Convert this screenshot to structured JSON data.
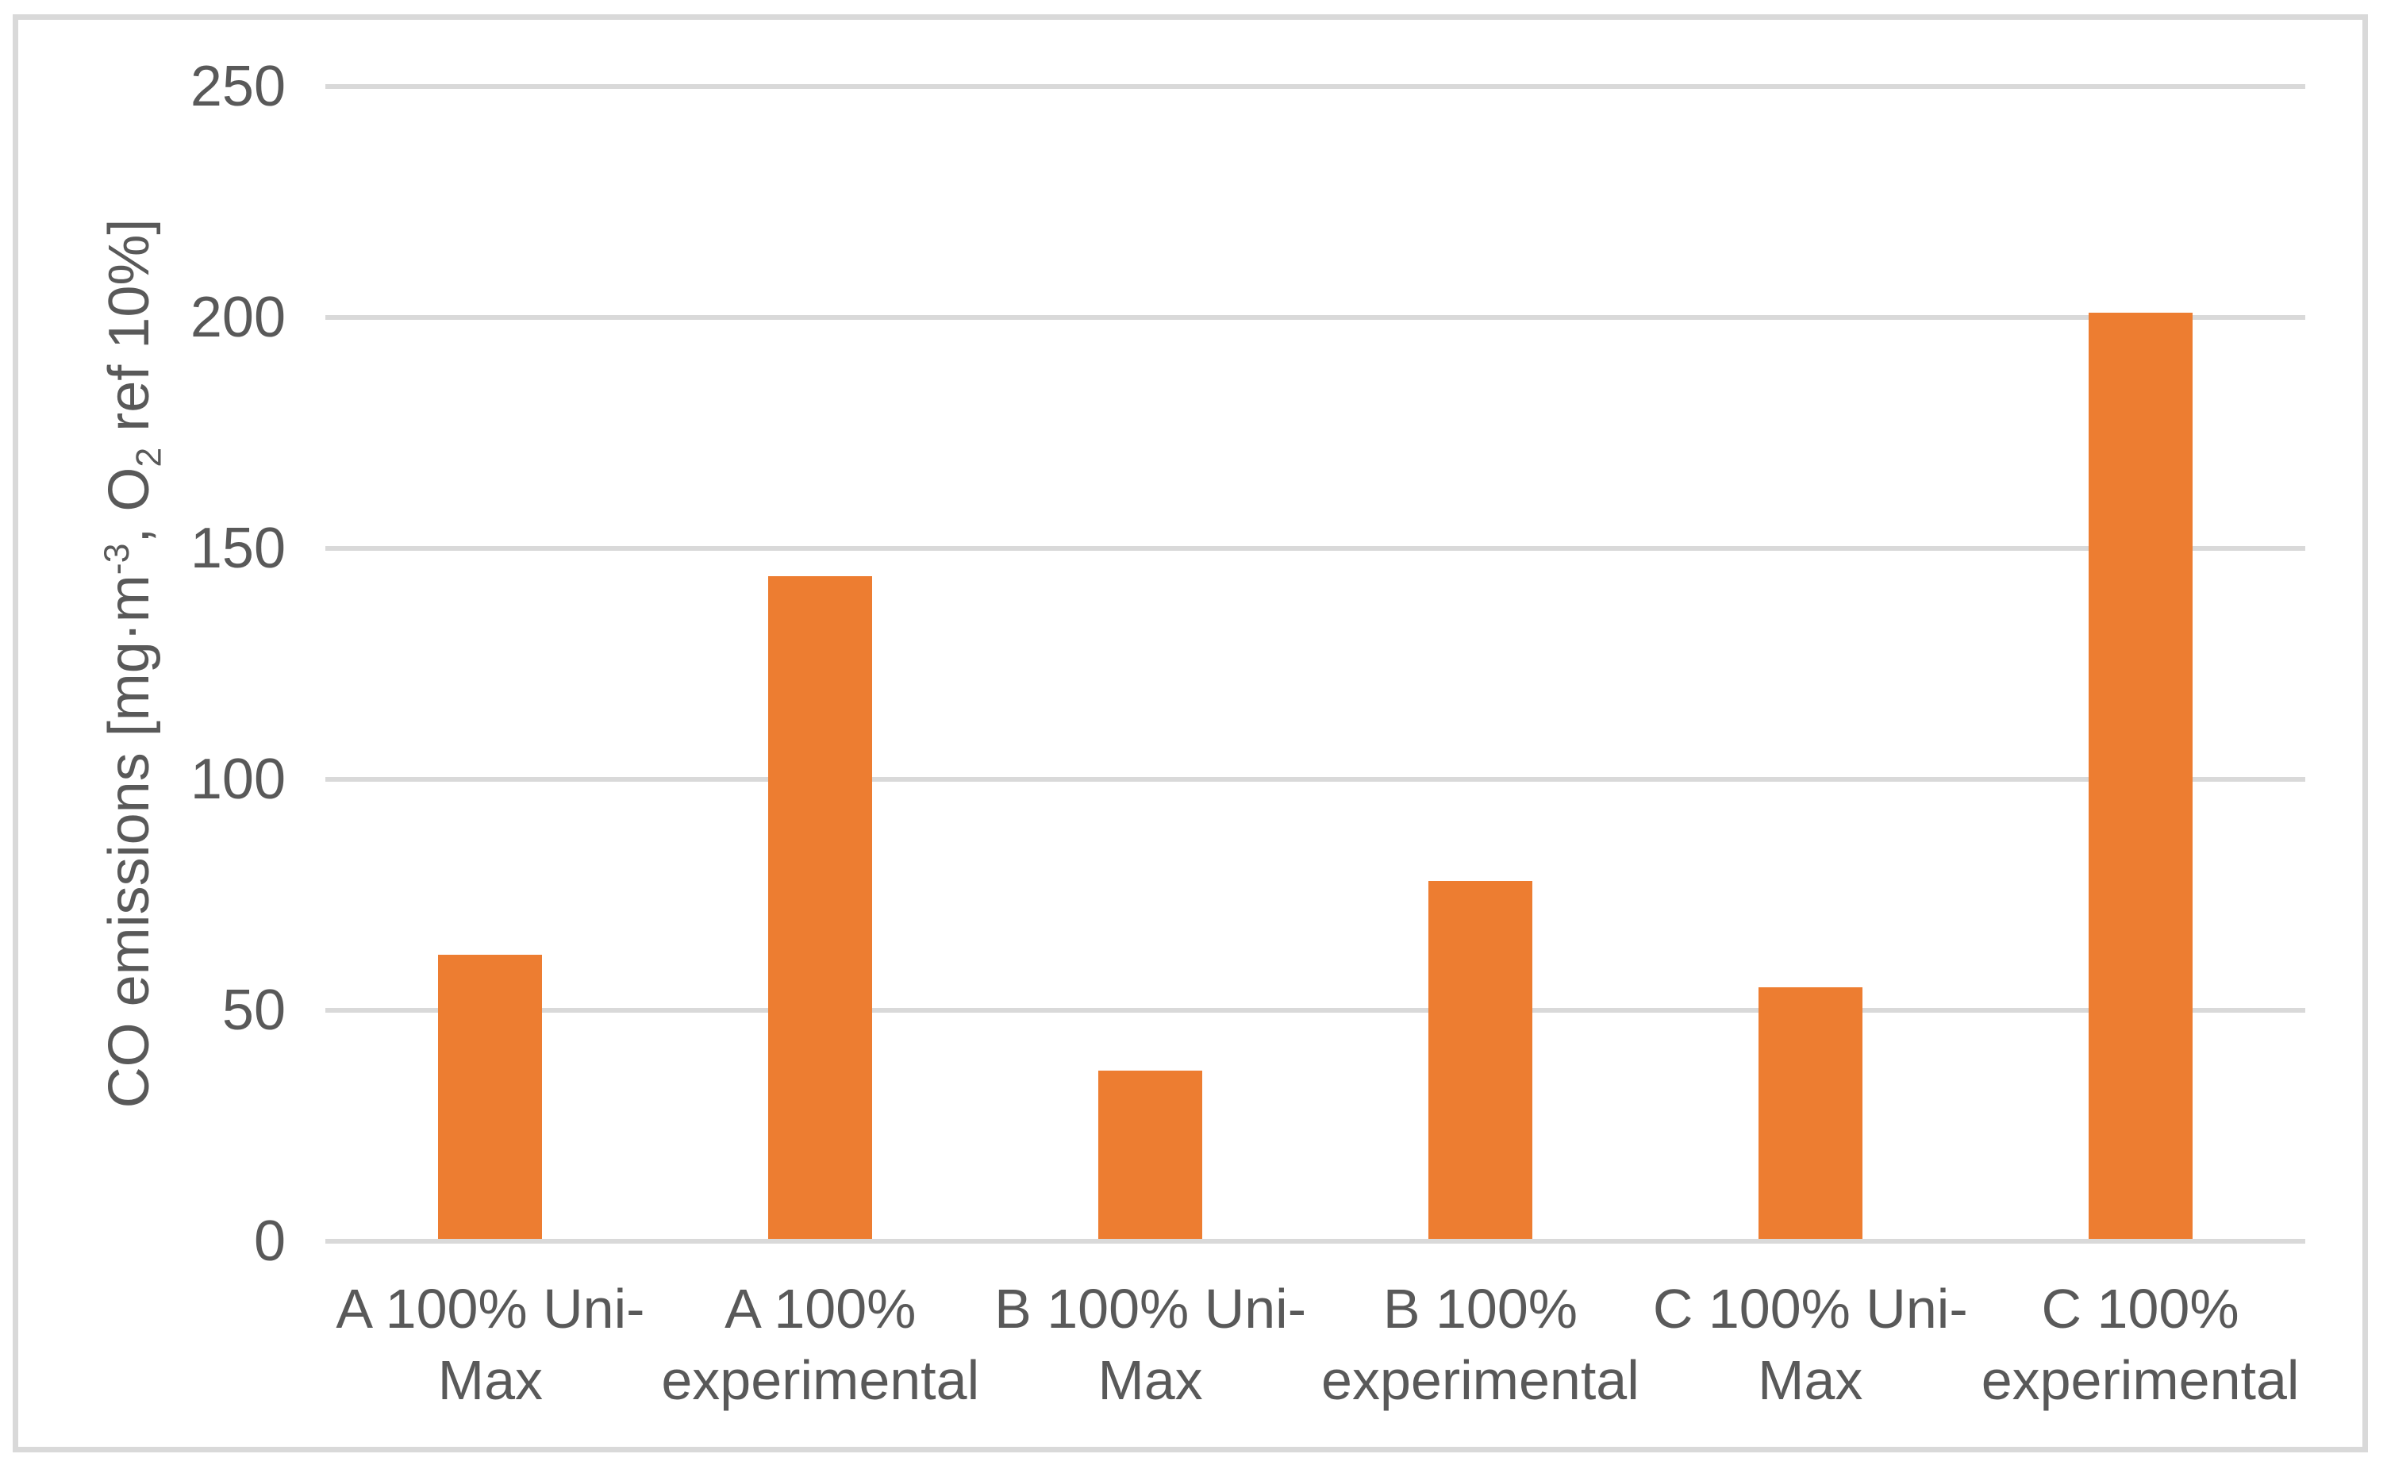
{
  "chart_data": {
    "type": "bar",
    "title": "",
    "categories": [
      "A 100% Uni-Max",
      "A 100% experimental",
      "B 100% Uni-Max",
      "B 100% experimental",
      "C 100% Uni-Max",
      "C 100% experimental"
    ],
    "categories_wrapped": [
      [
        "A 100% Uni-",
        "Max"
      ],
      [
        "A 100%",
        "experimental"
      ],
      [
        "B 100% Uni-",
        "Max"
      ],
      [
        "B 100%",
        "experimental"
      ],
      [
        "C 100% Uni-",
        "Max"
      ],
      [
        "C 100%",
        "experimental"
      ]
    ],
    "values": [
      62,
      144,
      37,
      78,
      55,
      201
    ],
    "xlabel": "",
    "ylabel": "CO emissions [mg·m⁻³, O₂ ref 10%]",
    "ylabel_parts": {
      "pre": "CO emissions [mg·m",
      "sup": "-3",
      "mid": ", O",
      "sub": "2",
      "post": " ref 10%]"
    },
    "yticks": [
      0,
      50,
      100,
      150,
      200,
      250
    ],
    "ylim": [
      0,
      250
    ],
    "grid": "horizontal",
    "legend": "none",
    "bar_color": "#ED7D31"
  },
  "colors": {
    "bar": "#ED7D31",
    "gridline": "#D9D9D9",
    "axis_line": "#D9D9D9",
    "text": "#595959",
    "frame_border": "#D9D9D9",
    "background": "#FFFFFF"
  }
}
